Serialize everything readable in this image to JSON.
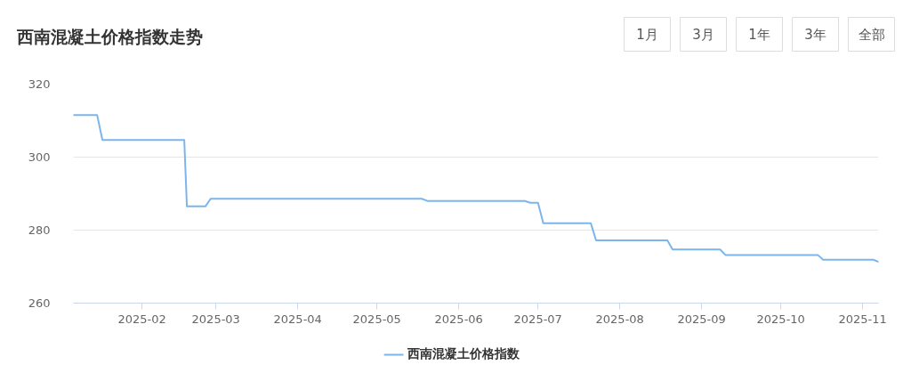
{
  "chart_data": {
    "type": "line",
    "title": "西南混凝土价格指数走势",
    "annotations": [
      "1月",
      "3月",
      "1年",
      "3年",
      "全部"
    ],
    "x": [
      "2025-01-06",
      "2025-01-15",
      "2025-01-17",
      "2025-02-17",
      "2025-02-18",
      "2025-02-25",
      "2025-02-27",
      "2025-05-18",
      "2025-05-20",
      "2025-06-26",
      "2025-06-28",
      "2025-07-01",
      "2025-07-03",
      "2025-07-21",
      "2025-07-23",
      "2025-08-19",
      "2025-08-21",
      "2025-09-08",
      "2025-09-10",
      "2025-10-15",
      "2025-10-17",
      "2025-11-05",
      "2025-11-07"
    ],
    "series": [
      {
        "name": "西南混凝土价格指数",
        "color": "#7cb5ec",
        "values": [
          311.5,
          311.5,
          304.7,
          304.7,
          286.5,
          286.5,
          288.6,
          288.6,
          288.0,
          288.0,
          287.5,
          287.5,
          281.9,
          281.9,
          277.2,
          277.2,
          274.7,
          274.7,
          273.2,
          273.2,
          271.9,
          271.9,
          271.3
        ]
      }
    ],
    "xlim": [
      "2025-01-06",
      "2025-11-07"
    ],
    "ylim": [
      260,
      320
    ],
    "xticks": [
      "2025-02",
      "2025-03",
      "2025-04",
      "2025-05",
      "2025-06",
      "2025-07",
      "2025-08",
      "2025-09",
      "2025-10",
      "2025-11"
    ],
    "yticks": [
      260,
      280,
      300,
      320
    ],
    "grid": "y",
    "legend": "bottom",
    "line_style": "solid"
  }
}
